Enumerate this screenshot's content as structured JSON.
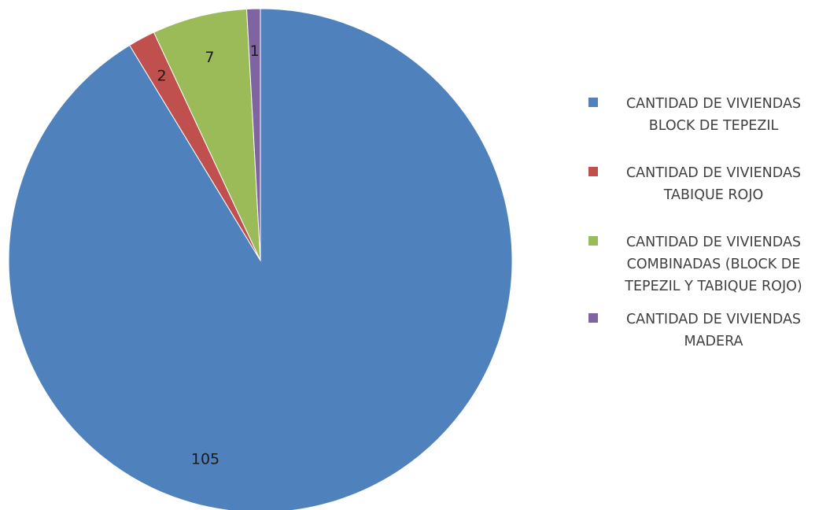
{
  "chart_data": {
    "type": "pie",
    "categories": [
      "CANTIDAD DE VIVIENDAS BLOCK DE TEPEZIL",
      "CANTIDAD DE VIVIENDAS TABIQUE ROJO",
      "CANTIDAD DE VIVIENDAS COMBINADAS (BLOCK DE TEPEZIL Y TABIQUE ROJO)",
      "CANTIDAD DE VIVIENDAS MADERA"
    ],
    "values": [
      105,
      2,
      7,
      1
    ],
    "data_labels": [
      "105",
      "2",
      "7",
      "1"
    ],
    "colors": [
      "#4f81bd",
      "#c0504d",
      "#9bbb59",
      "#8064a2"
    ],
    "legend_position": "right",
    "title": ""
  },
  "legend": {
    "items": [
      {
        "label": "CANTIDAD DE VIVIENDAS\nBLOCK DE TEPEZIL",
        "color": "#4f81bd"
      },
      {
        "label": "CANTIDAD DE VIVIENDAS\nTABIQUE ROJO",
        "color": "#c0504d"
      },
      {
        "label": "CANTIDAD DE VIVIENDAS\nCOMBINADAS (BLOCK DE\nTEPEZIL Y TABIQUE ROJO)",
        "color": "#9bbb59"
      },
      {
        "label": "CANTIDAD DE VIVIENDAS\nMADERA",
        "color": "#8064a2"
      }
    ]
  }
}
